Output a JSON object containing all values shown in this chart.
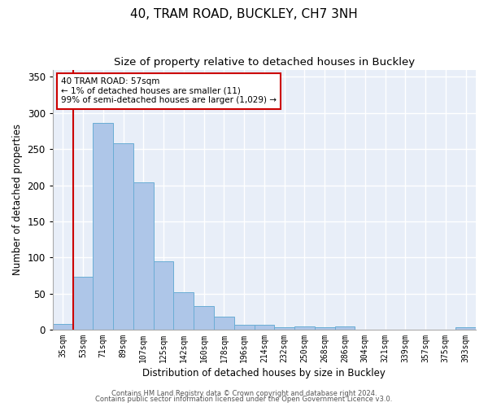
{
  "title1": "40, TRAM ROAD, BUCKLEY, CH7 3NH",
  "title2": "Size of property relative to detached houses in Buckley",
  "xlabel": "Distribution of detached houses by size in Buckley",
  "ylabel": "Number of detached properties",
  "categories": [
    "35sqm",
    "53sqm",
    "71sqm",
    "89sqm",
    "107sqm",
    "125sqm",
    "142sqm",
    "160sqm",
    "178sqm",
    "196sqm",
    "214sqm",
    "232sqm",
    "250sqm",
    "268sqm",
    "286sqm",
    "304sqm",
    "321sqm",
    "339sqm",
    "357sqm",
    "375sqm",
    "393sqm"
  ],
  "values": [
    8,
    73,
    286,
    258,
    204,
    95,
    52,
    33,
    18,
    7,
    7,
    3,
    4,
    3,
    4,
    0,
    0,
    0,
    0,
    0,
    3
  ],
  "bar_color": "#aec6e8",
  "bar_edge_color": "#6aadd5",
  "vline_color": "#cc0000",
  "annotation_text": "40 TRAM ROAD: 57sqm\n← 1% of detached houses are smaller (11)\n99% of semi-detached houses are larger (1,029) →",
  "annotation_box_color": "white",
  "annotation_box_edge_color": "#cc0000",
  "footer1": "Contains HM Land Registry data © Crown copyright and database right 2024.",
  "footer2": "Contains public sector information licensed under the Open Government Licence v3.0.",
  "ylim": [
    0,
    360
  ],
  "yticks": [
    0,
    50,
    100,
    150,
    200,
    250,
    300,
    350
  ],
  "plot_bg_color": "#e8eef8",
  "title1_fontsize": 11,
  "title2_fontsize": 9.5,
  "grid_color": "white"
}
